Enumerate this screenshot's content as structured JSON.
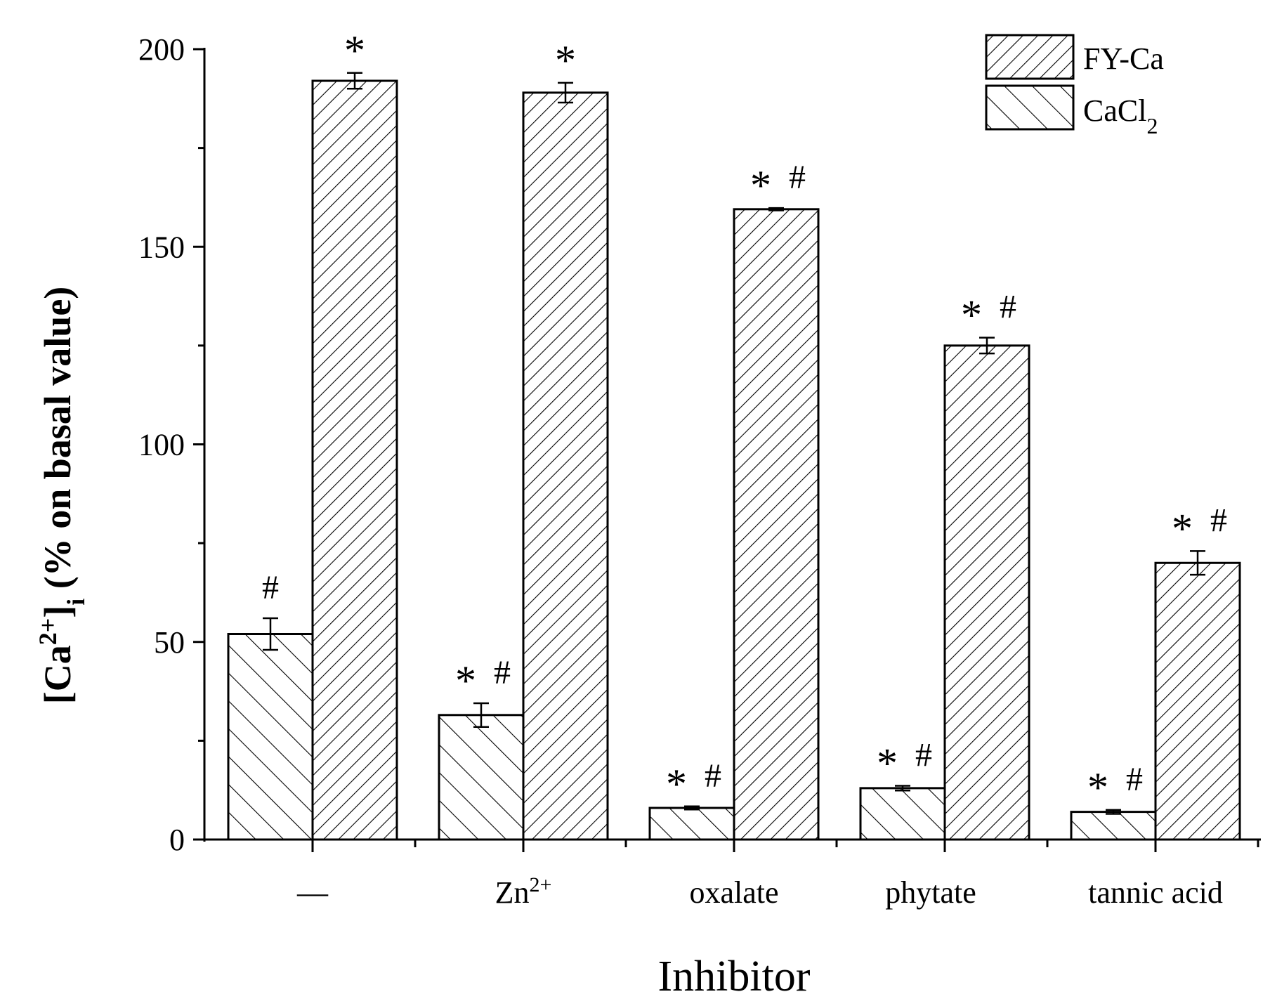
{
  "chart_data": {
    "type": "bar",
    "title": "",
    "xlabel": "Inhibitor",
    "ylabel": "[Ca2+]i (% on basal value)",
    "ylabel_parts": {
      "open": "[Ca",
      "sup": "2+",
      "close": "]",
      "sub": "i",
      "rest": " (% on basal value)"
    },
    "ylim": [
      0,
      200
    ],
    "yticks": [
      0,
      50,
      100,
      150,
      200
    ],
    "categories": [
      {
        "main": "—",
        "sup": ""
      },
      {
        "main": "Zn",
        "sup": "2+"
      },
      {
        "main": "oxalate",
        "sup": ""
      },
      {
        "main": "phytate",
        "sup": ""
      },
      {
        "main": "tannic acid",
        "sup": ""
      }
    ],
    "series": [
      {
        "name": "CaCl2",
        "legend_main": "CaCl",
        "legend_sub": "2",
        "pattern": "backslash",
        "values": [
          52,
          31.5,
          8,
          13,
          7
        ],
        "errors": [
          4,
          3,
          0.4,
          0.6,
          0.5
        ],
        "annotations": [
          {
            "star": "",
            "hash": "#"
          },
          {
            "star": "*",
            "hash": "#"
          },
          {
            "star": "*",
            "hash": "#"
          },
          {
            "star": "*",
            "hash": "#"
          },
          {
            "star": "*",
            "hash": "#"
          }
        ]
      },
      {
        "name": "FY-Ca",
        "legend_main": "FY-Ca",
        "legend_sub": "",
        "pattern": "slash",
        "values": [
          192,
          189,
          159.5,
          125,
          70
        ],
        "errors": [
          2,
          2.5,
          0.3,
          2,
          3
        ],
        "annotations": [
          {
            "star": "*",
            "hash": ""
          },
          {
            "star": "*",
            "hash": ""
          },
          {
            "star": "*",
            "hash": "#"
          },
          {
            "star": "*",
            "hash": "#"
          },
          {
            "star": "*",
            "hash": "#"
          }
        ]
      }
    ],
    "legend_order": [
      "FY-Ca",
      "CaCl2"
    ],
    "legend_position": "top-right",
    "grid": false
  }
}
